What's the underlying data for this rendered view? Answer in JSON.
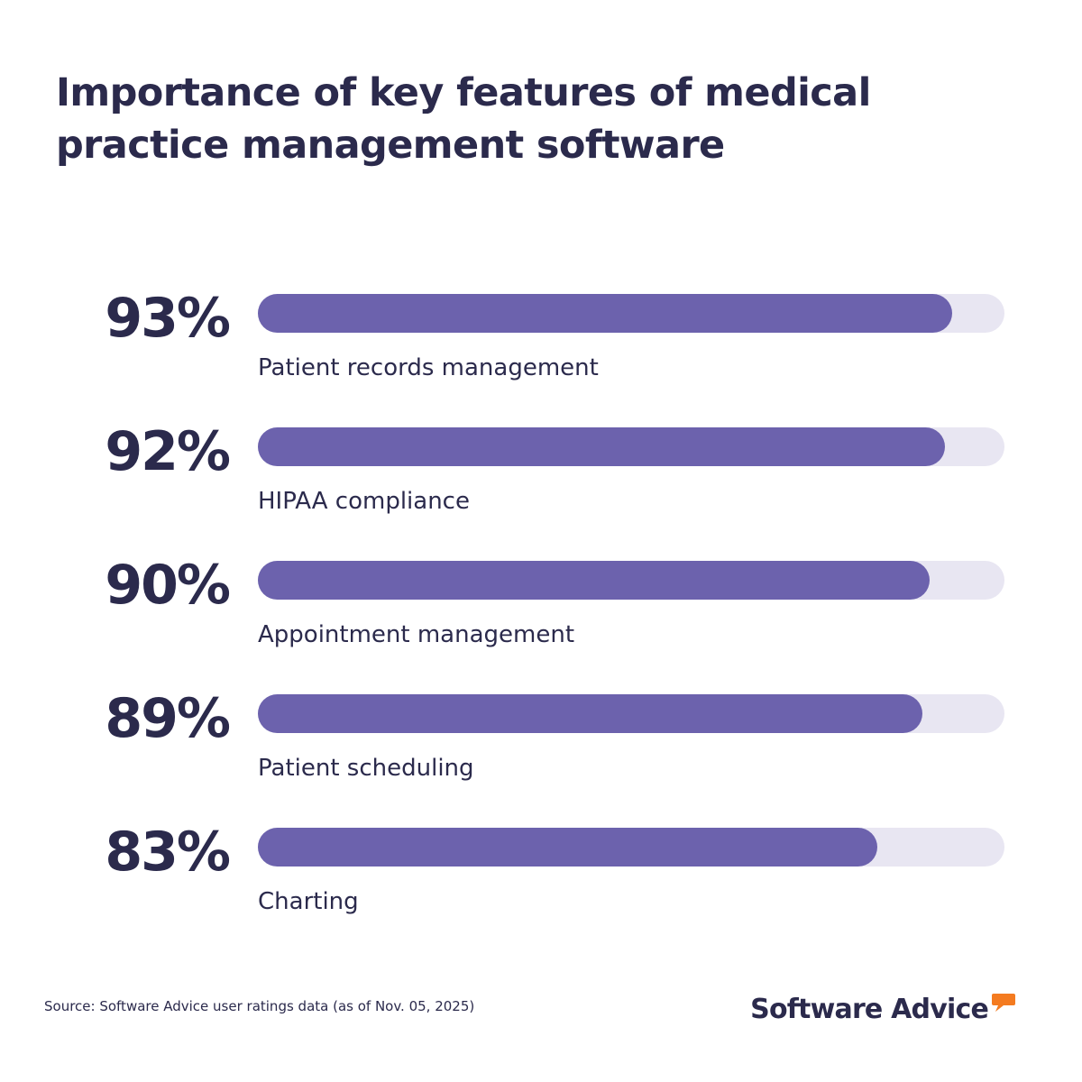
{
  "title": "Importance of key features of medical practice management software",
  "chart_data": {
    "type": "bar",
    "orientation": "horizontal",
    "title": "Importance of key features of medical practice management software",
    "categories": [
      "Patient records management",
      "HIPAA compliance",
      "Appointment management",
      "Patient scheduling",
      "Charting"
    ],
    "values": [
      93,
      92,
      90,
      89,
      83
    ],
    "value_labels": [
      "93%",
      "92%",
      "90%",
      "89%",
      "83%"
    ],
    "xlim": [
      0,
      100
    ],
    "grid": false,
    "legend": "none"
  },
  "colors": {
    "bar_fill": "#6c62ad",
    "bar_track": "#e8e6f2",
    "text": "#2b2a4c",
    "brand_accent": "#f47b20"
  },
  "footer": {
    "source": "Source: Software Advice user ratings data (as of Nov. 05, 2025)",
    "brand": "Software Advice",
    "brand_icon": "speech-bubble-icon"
  }
}
